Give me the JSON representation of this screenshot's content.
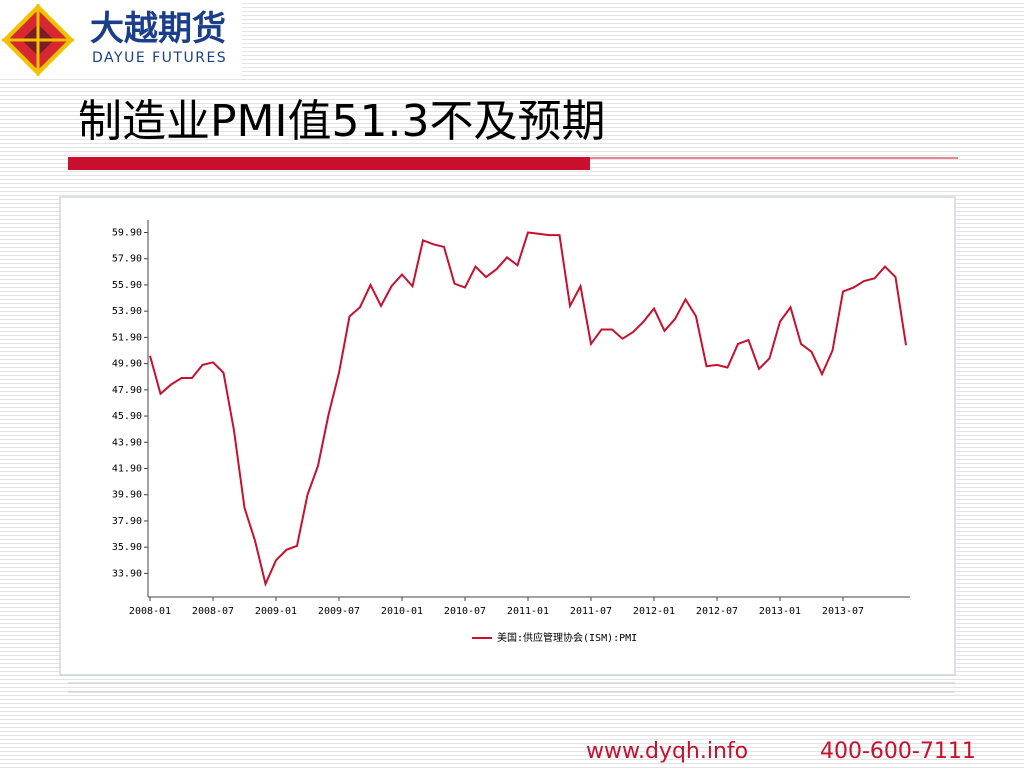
{
  "header": {
    "logo_cn": "大越期货",
    "logo_en": "DAYUE FUTURES",
    "title": "制造业PMI值51.3不及预期"
  },
  "chart_data": {
    "type": "line",
    "categories": [
      "2008-01",
      null,
      null,
      null,
      null,
      null,
      "2008-07",
      null,
      null,
      null,
      null,
      null,
      "2009-01",
      null,
      null,
      null,
      null,
      null,
      "2009-07",
      null,
      null,
      null,
      null,
      null,
      "2010-01",
      null,
      null,
      null,
      null,
      null,
      "2010-07",
      null,
      null,
      null,
      null,
      null,
      "2011-01",
      null,
      null,
      null,
      null,
      null,
      "2011-07",
      null,
      null,
      null,
      null,
      null,
      "2012-01",
      null,
      null,
      null,
      null,
      null,
      "2012-07",
      null,
      null,
      null,
      null,
      null,
      "2013-01",
      null,
      null,
      null,
      null,
      null,
      "2013-07",
      null,
      null,
      null,
      null,
      null,
      null
    ],
    "series": [
      {
        "name": "美国:供应管理协会(ISM):PMI",
        "color": "#c8102e",
        "values": [
          50.5,
          47.6,
          48.3,
          48.8,
          48.8,
          49.8,
          50.0,
          49.2,
          44.8,
          38.9,
          36.4,
          33.1,
          34.9,
          35.7,
          36.0,
          39.9,
          42.1,
          46.0,
          49.2,
          53.5,
          54.2,
          55.9,
          54.3,
          55.8,
          56.7,
          55.8,
          59.3,
          59.0,
          58.8,
          56.0,
          55.7,
          57.3,
          56.5,
          57.1,
          58.0,
          57.4,
          59.9,
          59.8,
          59.7,
          59.7,
          54.3,
          55.8,
          51.4,
          52.5,
          52.5,
          51.8,
          52.3,
          53.1,
          54.1,
          52.4,
          53.3,
          54.8,
          53.5,
          49.7,
          49.8,
          49.6,
          51.4,
          51.7,
          49.5,
          50.3,
          53.1,
          54.2,
          51.4,
          50.8,
          49.1,
          50.9,
          55.4,
          55.7,
          56.2,
          56.4,
          57.3,
          56.5,
          51.3
        ]
      }
    ],
    "ylim": [
      32.1,
      60.7
    ],
    "yticks": [
      {
        "value": 33.9,
        "label": "33.90"
      },
      {
        "value": 35.9,
        "label": "35.90"
      },
      {
        "value": 37.9,
        "label": "37.90"
      },
      {
        "value": 39.9,
        "label": "39.90"
      },
      {
        "value": 41.9,
        "label": "41.90"
      },
      {
        "value": 43.9,
        "label": "43.90"
      },
      {
        "value": 45.9,
        "label": "45.90"
      },
      {
        "value": 47.9,
        "label": "47.90"
      },
      {
        "value": 49.9,
        "label": "49.90"
      },
      {
        "value": 51.9,
        "label": "51.90"
      },
      {
        "value": 53.9,
        "label": "53.90"
      },
      {
        "value": 55.9,
        "label": "55.90"
      },
      {
        "value": 57.9,
        "label": "57.90"
      },
      {
        "value": 59.9,
        "label": "59.90"
      }
    ],
    "legend": "bottom"
  },
  "footer": {
    "website": "www.dyqh.info",
    "phone": "400-600-7111"
  }
}
